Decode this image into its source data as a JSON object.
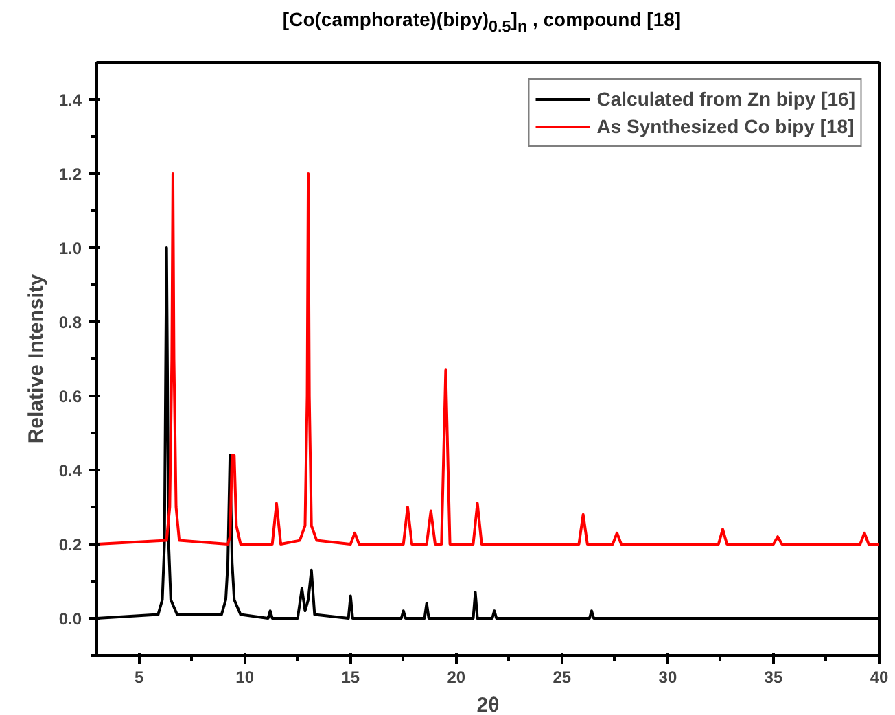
{
  "chart_data": {
    "type": "line",
    "title": "[Co(camphorate)(bipy)$_{0.5}$]$_{n}$ , compound [18]",
    "xlabel": "2θ",
    "ylabel": "Relative Intensity",
    "xlim": [
      3,
      40
    ],
    "xticks": [
      5,
      10,
      15,
      20,
      25,
      30,
      35,
      40
    ],
    "ylim": [
      -0.1,
      1.5
    ],
    "yticks": [
      {
        "value": 0,
        "label": "0.0"
      },
      0.2,
      0.4,
      0.6,
      0.8,
      {
        "value": 1,
        "label": "1.0"
      },
      1.2,
      1.4
    ],
    "grid": false,
    "legend": "top right",
    "marker": "none",
    "line_style": "solid",
    "series": [
      {
        "name": "Calculated from Zn bipy [16]",
        "color": "#000000",
        "x": [
          3,
          5.9,
          6.1,
          6.2,
          6.3,
          6.4,
          6.5,
          6.8,
          8.9,
          9.1,
          9.2,
          9.3,
          9.4,
          9.5,
          9.8,
          11.1,
          11.2,
          11.3,
          12.5,
          12.7,
          12.85,
          13.0,
          13.15,
          13.3,
          14.9,
          15.0,
          15.1,
          17.4,
          17.5,
          17.6,
          18.5,
          18.6,
          18.7,
          20.8,
          20.9,
          21.0,
          21.7,
          21.8,
          21.9,
          26.3,
          26.4,
          26.5,
          40
        ],
        "values": [
          0,
          0.01,
          0.05,
          0.2,
          1.0,
          0.2,
          0.05,
          0.01,
          0.01,
          0.05,
          0.15,
          0.44,
          0.15,
          0.05,
          0.01,
          0,
          0.02,
          0,
          0,
          0.08,
          0.02,
          0.05,
          0.13,
          0.01,
          0,
          0.06,
          0,
          0,
          0.02,
          0,
          0,
          0.04,
          0,
          0,
          0.07,
          0,
          0,
          0.02,
          0,
          0,
          0.02,
          0,
          0
        ]
      },
      {
        "name": "As Synthesized Co bipy [18]",
        "color": "#ff0000",
        "x": [
          3,
          6.3,
          6.45,
          6.55,
          6.6,
          6.65,
          6.75,
          6.9,
          9.2,
          9.3,
          9.4,
          9.5,
          9.6,
          9.8,
          11.3,
          11.5,
          11.7,
          12.6,
          12.85,
          12.95,
          13.0,
          13.05,
          13.15,
          13.4,
          15.0,
          15.2,
          15.4,
          17.5,
          17.7,
          17.9,
          18.6,
          18.8,
          19.0,
          19.3,
          19.5,
          19.7,
          20.8,
          21.0,
          21.2,
          25.8,
          26.0,
          26.2,
          27.4,
          27.6,
          27.8,
          32.4,
          32.6,
          32.8,
          35.0,
          35.2,
          35.4,
          39.1,
          39.3,
          39.5,
          40
        ],
        "values": [
          0.2,
          0.21,
          0.3,
          0.7,
          1.2,
          0.7,
          0.3,
          0.21,
          0.2,
          0.22,
          0.44,
          0.44,
          0.25,
          0.2,
          0.2,
          0.31,
          0.2,
          0.21,
          0.25,
          0.6,
          1.2,
          0.6,
          0.25,
          0.21,
          0.2,
          0.23,
          0.2,
          0.2,
          0.3,
          0.2,
          0.2,
          0.29,
          0.2,
          0.2,
          0.67,
          0.2,
          0.2,
          0.31,
          0.2,
          0.2,
          0.28,
          0.2,
          0.2,
          0.23,
          0.2,
          0.2,
          0.24,
          0.2,
          0.2,
          0.22,
          0.2,
          0.2,
          0.23,
          0.2,
          0.2
        ]
      }
    ]
  }
}
